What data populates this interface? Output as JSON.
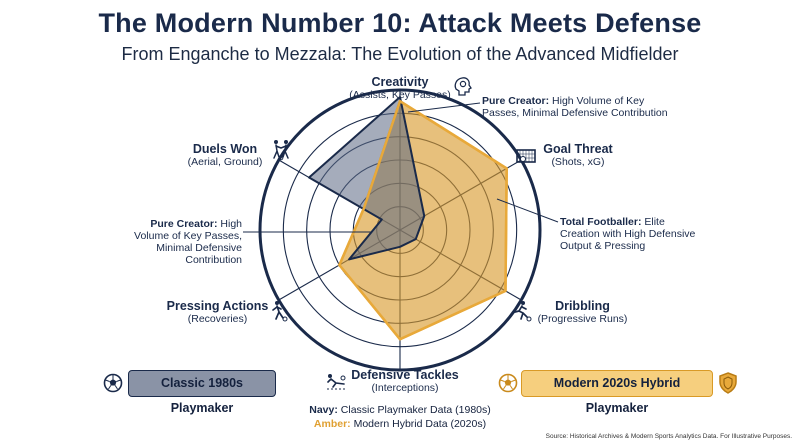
{
  "title": "The Modern Number 10: Attack Meets Defense",
  "subtitle": "From Enganche to Mezzala: The Evolution of the Advanced Midfielder",
  "axes": [
    {
      "name": "Creativity",
      "sub": "(Assists, Key Passes)",
      "icon": "brain-gear-icon"
    },
    {
      "name": "Goal Threat",
      "sub": "(Shots, xG)",
      "icon": "goal-net-icon"
    },
    {
      "name": "Dribbling",
      "sub": "(Progressive Runs)",
      "icon": "dribbling-player-icon"
    },
    {
      "name": "Defensive Tackles",
      "sub": "(Interceptions)",
      "icon": "sliding-tackle-icon"
    },
    {
      "name": "Pressing Actions",
      "sub": "(Recoveries)",
      "icon": "pressing-player-icon"
    },
    {
      "name": "Duels Won",
      "sub": "(Aerial, Ground)",
      "icon": "duel-players-icon"
    }
  ],
  "annotations": {
    "top": {
      "bold": "Pure Creator:",
      "text": " High Volume of Key Passes, Minimal Defensive Contribution"
    },
    "left": {
      "bold": "Pure Creator:",
      "text": " High Volume of Key Passes, Minimal Defensive Contribution"
    },
    "right": {
      "bold": "Total Footballer:",
      "text": " Elite Creation with High Defensive Output & Pressing"
    }
  },
  "legend": {
    "classic": {
      "label": "Classic 1980s Playmaker",
      "icon": "football-icon"
    },
    "modern": {
      "label": "Modern 2020s Hybrid Playmaker",
      "icon": "football-icon",
      "badge": "shield-icon"
    }
  },
  "data_note": {
    "navy_label": "Navy:",
    "navy_text": " Classic Playmaker Data (1980s)",
    "amber_label": "Amber:",
    "amber_text": " Modern Hybrid Data (2020s)"
  },
  "source": "Source: Historical Archives & Modern Sports Analytics Data. For Illustrative Purposes.",
  "colors": {
    "navy": "#1a2a4a",
    "navy_fill": "#5b6783",
    "amber": "#e8a93a",
    "amber_fill": "#d99a2b"
  },
  "chart_data": {
    "type": "radar",
    "categories": [
      "Creativity",
      "Goal Threat",
      "Dribbling",
      "Defensive Tackles",
      "Pressing Actions",
      "Duels Won"
    ],
    "rmax": 100,
    "rings": 6,
    "series": [
      {
        "name": "Classic 1980s Playmaker",
        "values": [
          95,
          20,
          13,
          12,
          42,
          15
        ],
        "extra_vertex": {
          "angle_deg": -60,
          "value": 75
        }
      },
      {
        "name": "Modern 2020s Hybrid Playmaker",
        "values": [
          92,
          88,
          87,
          78,
          50,
          30
        ]
      }
    ]
  }
}
